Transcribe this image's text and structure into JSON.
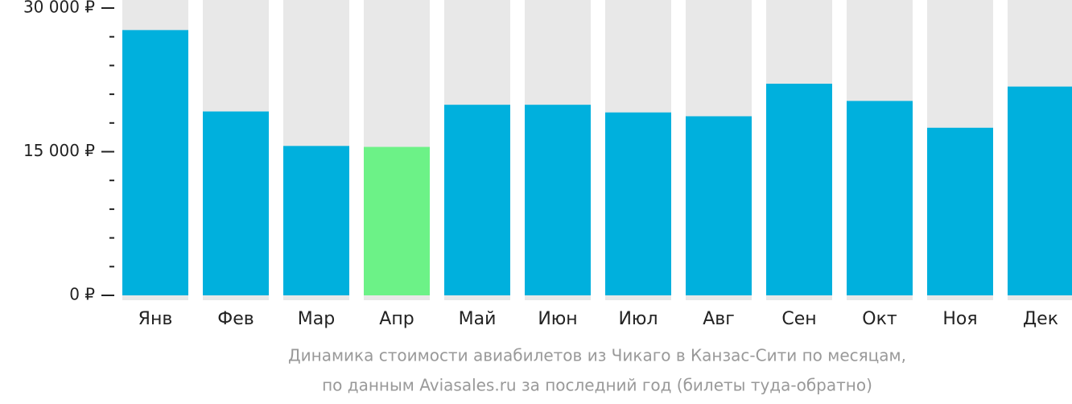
{
  "chart_data": {
    "type": "bar",
    "categories": [
      "Янв",
      "Фев",
      "Мар",
      "Апр",
      "Май",
      "Июн",
      "Июл",
      "Авг",
      "Сен",
      "Окт",
      "Ноя",
      "Дек"
    ],
    "values": [
      27700,
      19200,
      15600,
      15500,
      19900,
      19900,
      19100,
      18700,
      22100,
      20300,
      17500,
      21800
    ],
    "colors": [
      "#00b0dd",
      "#00b0dd",
      "#00b0dd",
      "#6cf287",
      "#00b0dd",
      "#00b0dd",
      "#00b0dd",
      "#00b0dd",
      "#00b0dd",
      "#00b0dd",
      "#00b0dd",
      "#00b0dd"
    ],
    "ylim": [
      0,
      30000
    ],
    "yticks": [
      {
        "value": 0,
        "label": "0 ₽"
      },
      {
        "value": 15000,
        "label": "15 000 ₽"
      },
      {
        "value": 30000,
        "label": "30 000 ₽"
      }
    ],
    "minor_yticks": [
      3000,
      6000,
      9000,
      12000,
      18000,
      21000,
      24000,
      27000
    ],
    "caption": [
      "Динамика стоимости авиабилетов из Чикаго в Канзас-Сити по месяцам,",
      "по данным Aviasales.ru за последний год (билеты туда-обратно)"
    ]
  }
}
